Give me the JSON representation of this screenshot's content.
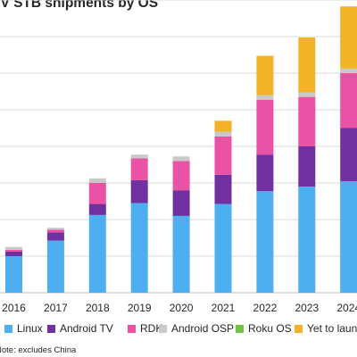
{
  "chart_data": {
    "type": "bar",
    "stacked": true,
    "title": "TV STB shipments by OS",
    "categories": [
      "2016",
      "2017",
      "2018",
      "2019",
      "2020",
      "2021",
      "2022",
      "2023",
      "2024"
    ],
    "ylim": [
      0,
      320
    ],
    "grid": true,
    "legend_position": "bottom",
    "series": [
      {
        "name": "Linux",
        "color": "#4daef0",
        "values": [
          40,
          57,
          85,
          98,
          84,
          97,
          111,
          116,
          122
        ]
      },
      {
        "name": "Android TV",
        "color": "#7030a0",
        "values": [
          5,
          9,
          12,
          25,
          28,
          32,
          40,
          44,
          58
        ]
      },
      {
        "name": "RDK",
        "color": "#e952a5",
        "values": [
          2,
          3,
          23,
          24,
          32,
          42,
          60,
          54,
          60
        ]
      },
      {
        "name": "Android OSP",
        "color": "#c9c9c9",
        "values": [
          3,
          2,
          5,
          4,
          5,
          5,
          5,
          5,
          5
        ]
      },
      {
        "name": "Roku OS",
        "color": "#70c344",
        "values": [
          0,
          0,
          0,
          0,
          0,
          0,
          0,
          0,
          0
        ]
      },
      {
        "name": "Yet to launch",
        "color": "#f4b229",
        "values": [
          0,
          0,
          0,
          0,
          0,
          12,
          43,
          60,
          68
        ]
      }
    ],
    "footnote": "Note: excludes China"
  }
}
